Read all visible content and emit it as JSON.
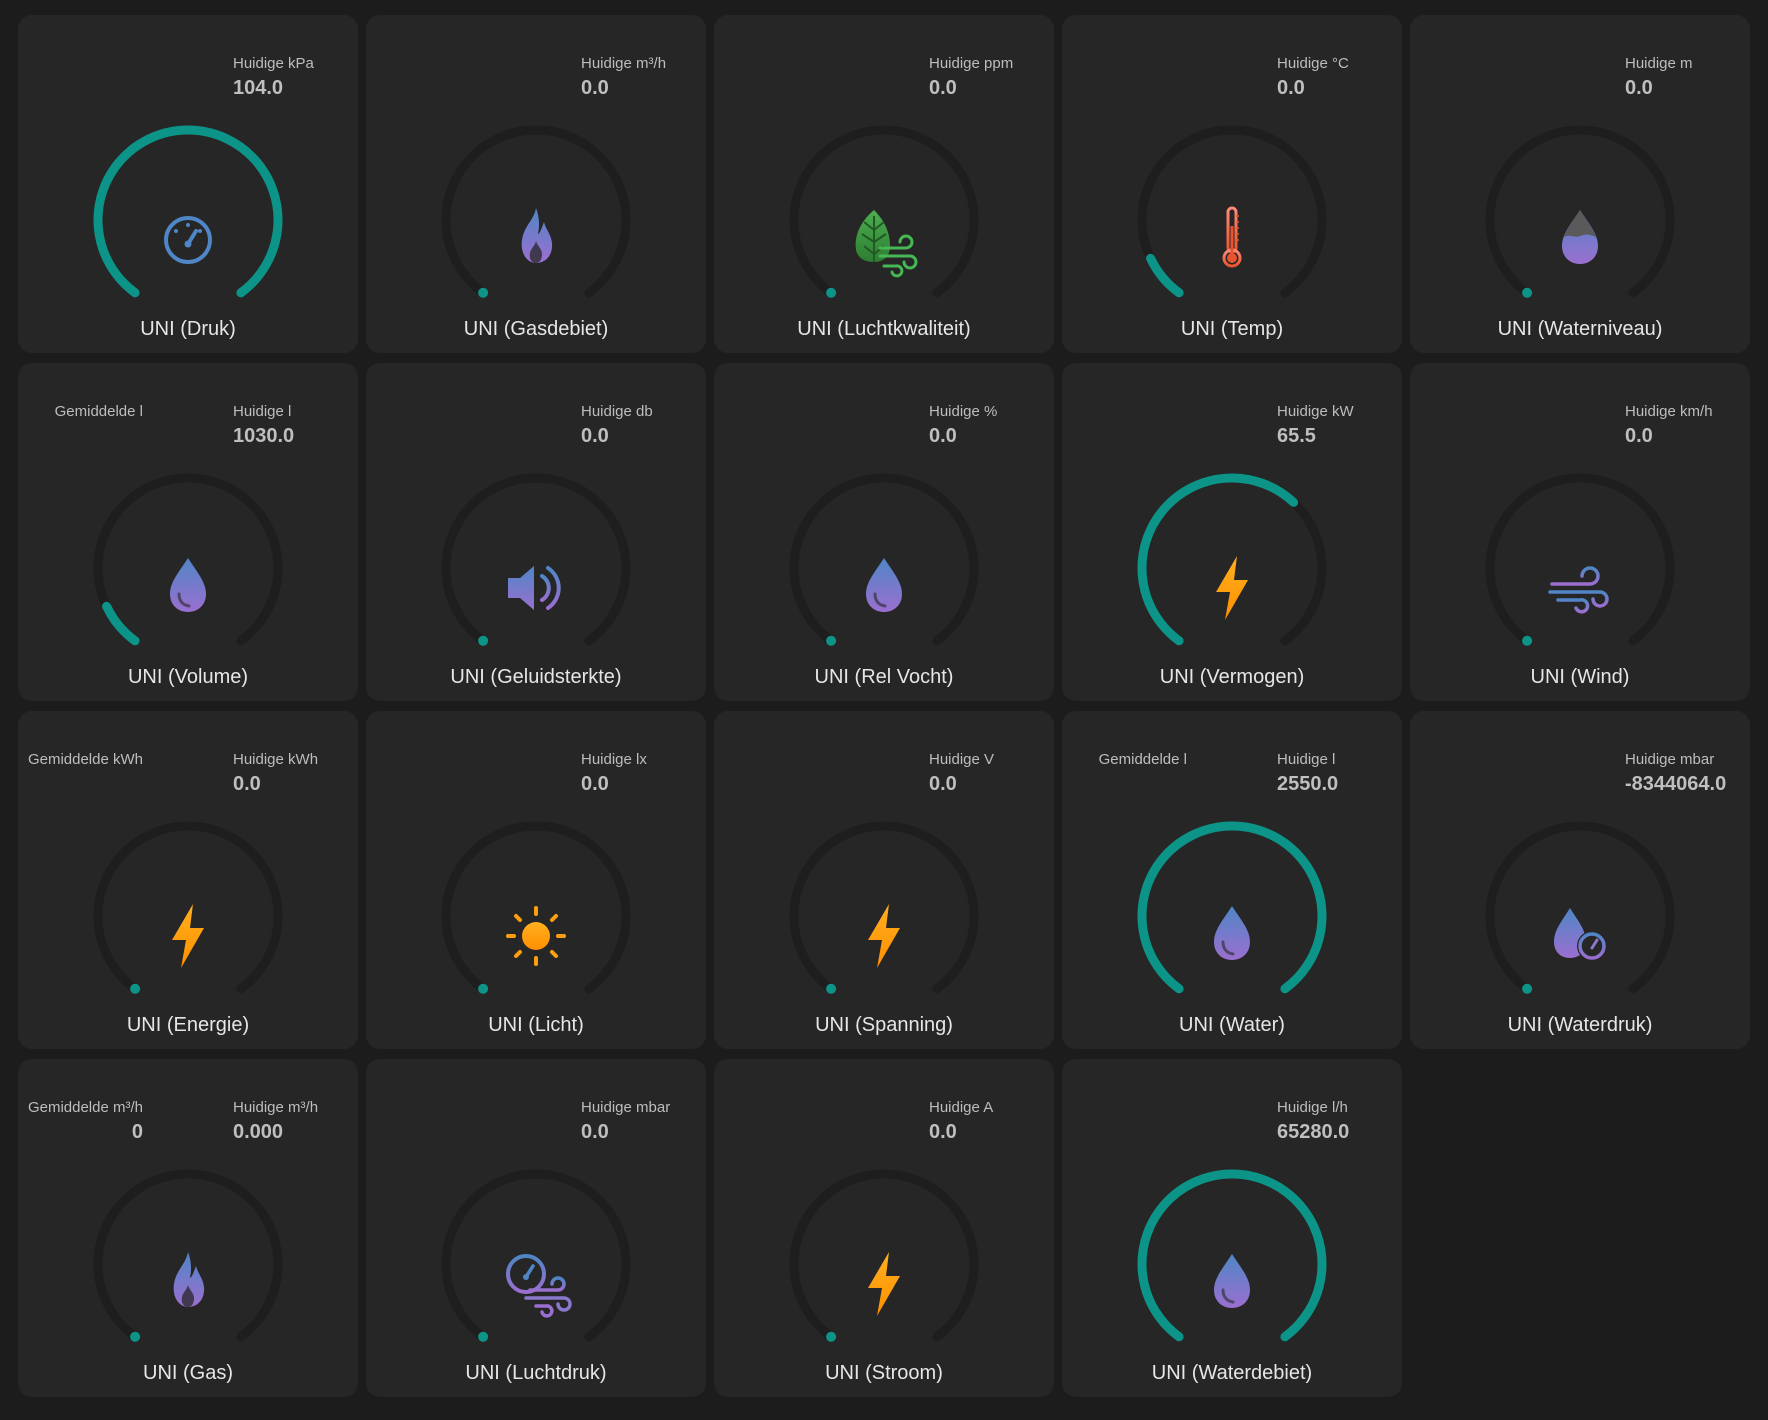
{
  "colors": {
    "background": "#1c1c1c",
    "tile": "#262626",
    "gauge_track": "#1e1e1e",
    "gauge_fill": "#0d9488",
    "label": "#bdbdbd",
    "value": "#bfbfbf",
    "title": "#e6e6e6"
  },
  "tiles": [
    {
      "name": "UNI (Druk)",
      "current_label": "Huidige kPa",
      "current_value": "104.0",
      "icon": "gauge-icon",
      "level": 1.0
    },
    {
      "name": "UNI (Gasdebiet)",
      "current_label": "Huidige m³/h",
      "current_value": "0.0",
      "icon": "flame-icon",
      "level": 0.0
    },
    {
      "name": "UNI (Luchtkwaliteit)",
      "current_label": "Huidige ppm",
      "current_value": "0.0",
      "icon": "leaf-wind-icon",
      "level": 0.0
    },
    {
      "name": "UNI (Temp)",
      "current_label": "Huidige °C",
      "current_value": "0.0",
      "icon": "thermometer-icon",
      "level": 0.1
    },
    {
      "name": "UNI (Waterniveau)",
      "current_label": "Huidige m",
      "current_value": "0.0",
      "icon": "water-level-icon",
      "level": 0.0
    },
    {
      "name": "UNI (Volume)",
      "average_label": "Gemiddelde l",
      "current_label": "Huidige l",
      "current_value": "1030.0",
      "icon": "water-drop-icon",
      "level": 0.1
    },
    {
      "name": "UNI (Geluidsterkte)",
      "current_label": "Huidige db",
      "current_value": "0.0",
      "icon": "speaker-icon",
      "level": 0.0
    },
    {
      "name": "UNI (Rel Vocht)",
      "current_label": "Huidige %",
      "current_value": "0.0",
      "icon": "water-drop-icon",
      "level": 0.0
    },
    {
      "name": "UNI (Vermogen)",
      "current_label": "Huidige kW",
      "current_value": "65.5",
      "icon": "lightning-icon",
      "level": 0.65
    },
    {
      "name": "UNI (Wind)",
      "current_label": "Huidige km/h",
      "current_value": "0.0",
      "icon": "wind-icon",
      "level": 0.0
    },
    {
      "name": "UNI (Energie)",
      "average_label": "Gemiddelde kWh",
      "current_label": "Huidige kWh",
      "current_value": "0.0",
      "icon": "lightning-icon",
      "level": 0.0
    },
    {
      "name": "UNI (Licht)",
      "current_label": "Huidige lx",
      "current_value": "0.0",
      "icon": "sun-icon",
      "level": 0.0
    },
    {
      "name": "UNI (Spanning)",
      "current_label": "Huidige V",
      "current_value": "0.0",
      "icon": "lightning-icon",
      "level": 0.0
    },
    {
      "name": "UNI (Water)",
      "average_label": "Gemiddelde l",
      "current_label": "Huidige l",
      "current_value": "2550.0",
      "icon": "water-drop-icon",
      "level": 1.0
    },
    {
      "name": "UNI (Waterdruk)",
      "current_label": "Huidige mbar",
      "current_value": "-8344064.0",
      "icon": "water-pressure-icon",
      "level": 0.0
    },
    {
      "name": "UNI (Gas)",
      "average_label": "Gemiddelde m³/h",
      "average_value": "0",
      "current_label": "Huidige m³/h",
      "current_value": "0.000",
      "icon": "flame-icon",
      "level": 0.0
    },
    {
      "name": "UNI (Luchtdruk)",
      "current_label": "Huidige mbar",
      "current_value": "0.0",
      "icon": "air-pressure-icon",
      "level": 0.0
    },
    {
      "name": "UNI (Stroom)",
      "current_label": "Huidige A",
      "current_value": "0.0",
      "icon": "lightning-icon",
      "level": 0.0
    },
    {
      "name": "UNI (Waterdebiet)",
      "current_label": "Huidige l/h",
      "current_value": "65280.0",
      "icon": "water-drop-icon",
      "level": 1.0
    }
  ]
}
